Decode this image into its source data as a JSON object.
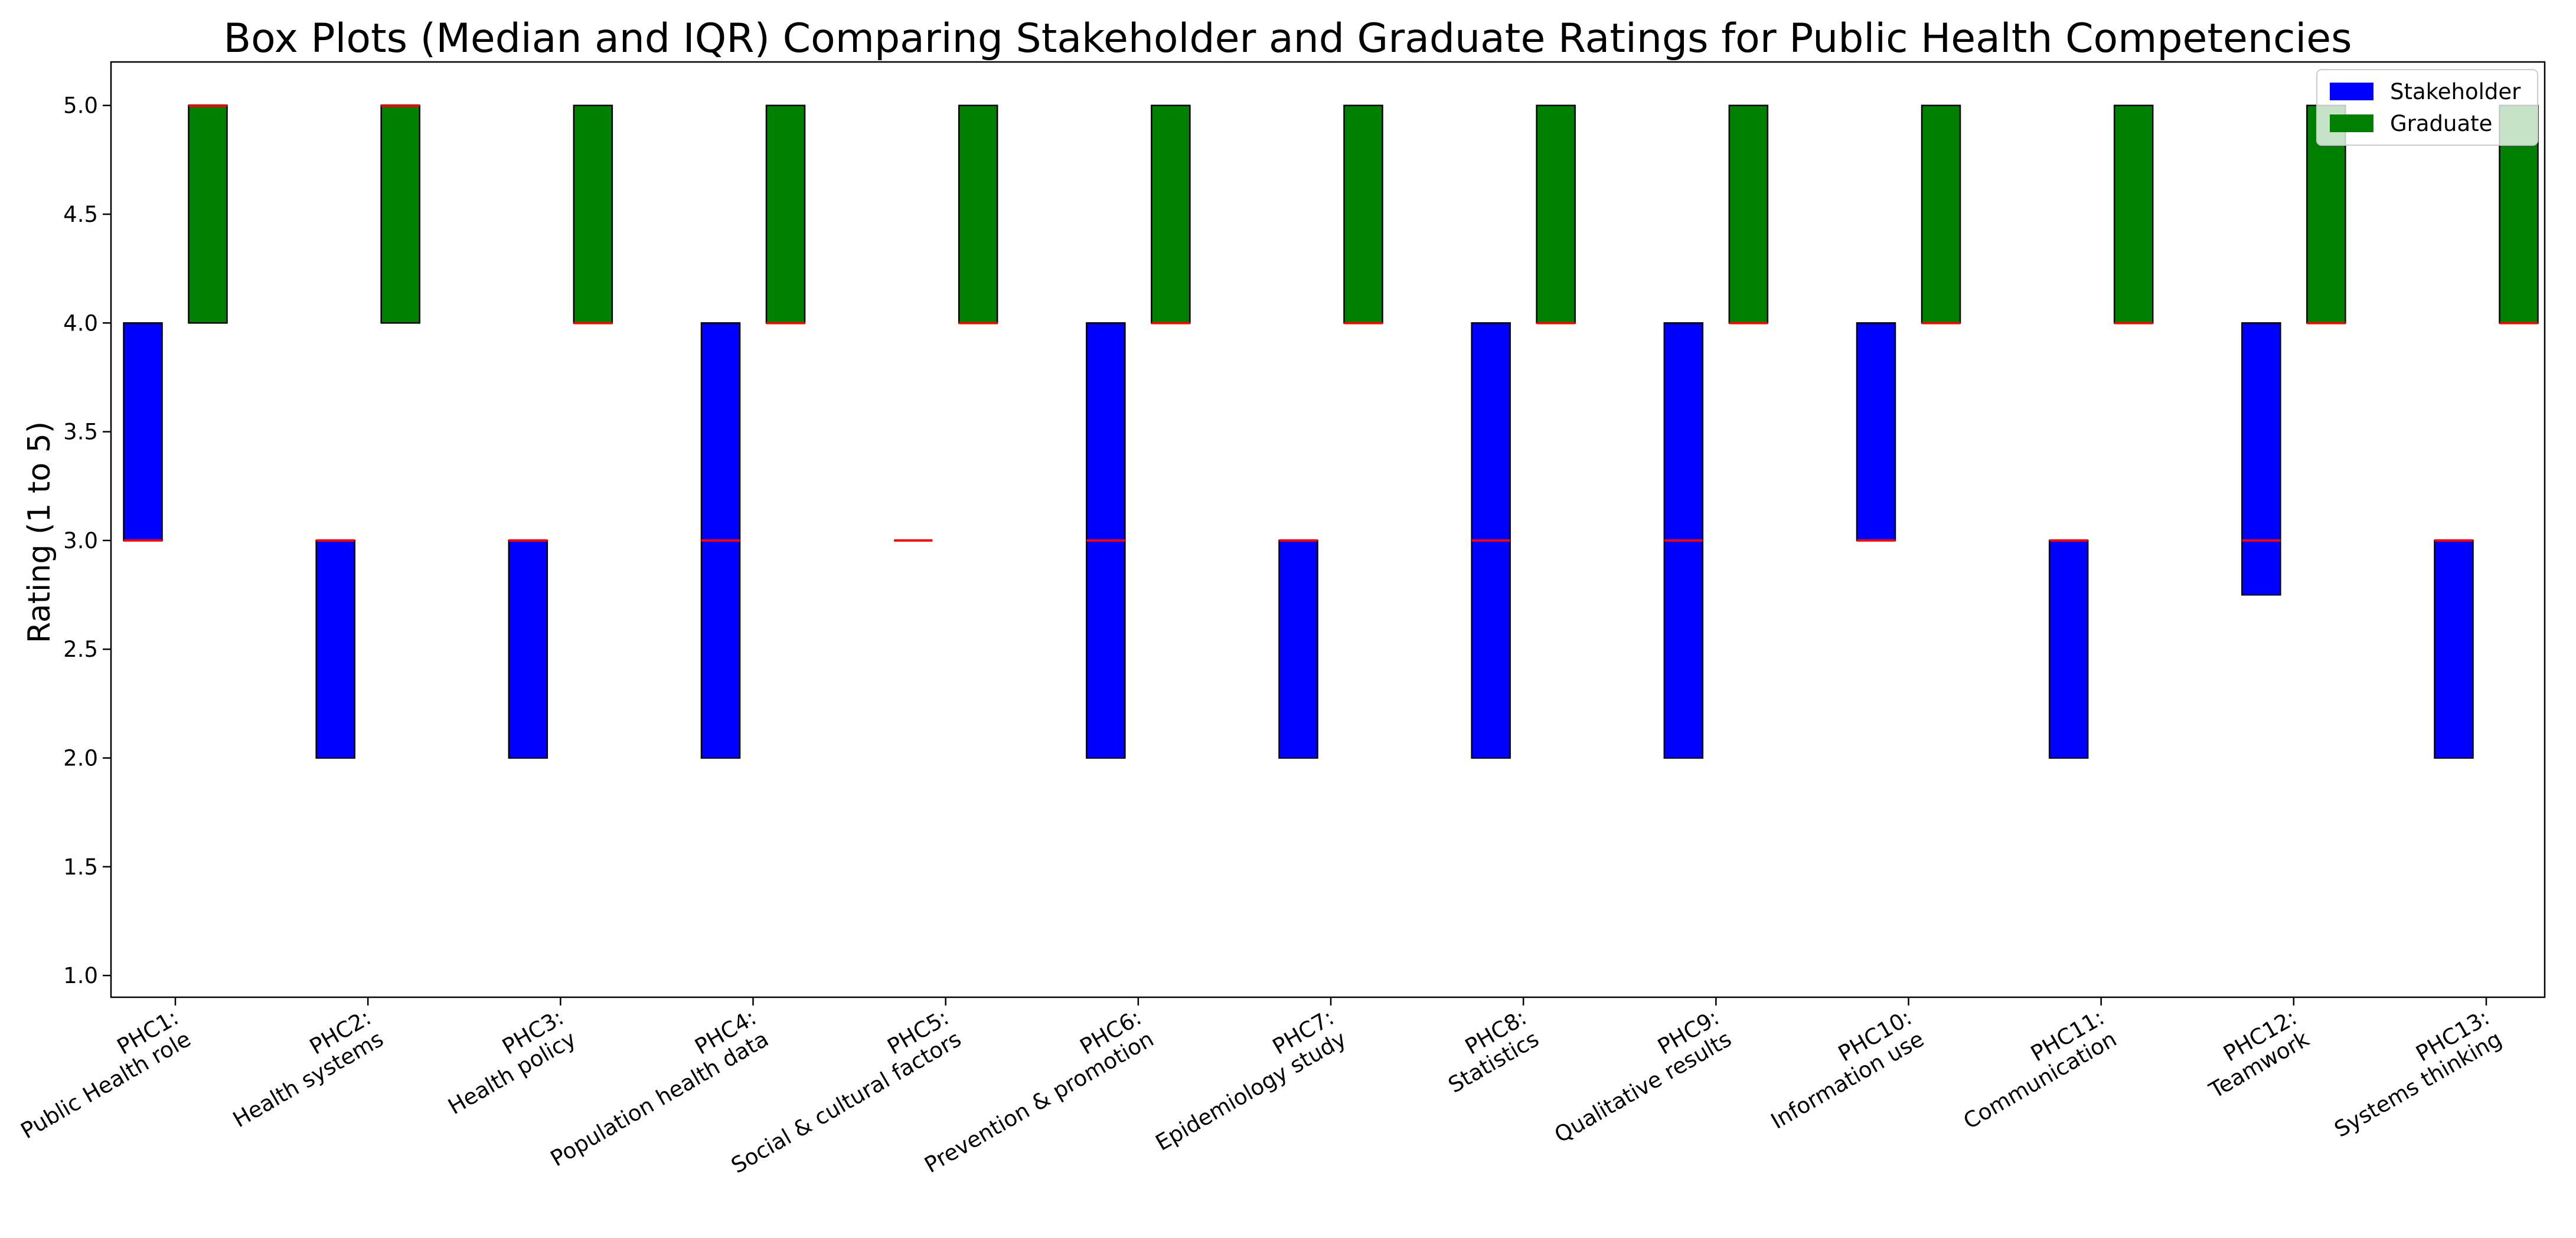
{
  "chart_data": {
    "type": "box",
    "title": "Box Plots (Median and IQR) Comparing Stakeholder and Graduate Ratings for Public Health Competencies",
    "ylabel": "Rating (1 to 5)",
    "xlabel": "",
    "ylim": [
      0.9,
      5.2
    ],
    "yticks": [
      "1.0",
      "1.5",
      "2.0",
      "2.5",
      "3.0",
      "3.5",
      "4.0",
      "4.5",
      "5.0"
    ],
    "grid": false,
    "legend": "top-right",
    "categories": [
      [
        "PHC1:",
        "Public Health role"
      ],
      [
        "PHC2:",
        "Health systems"
      ],
      [
        "PHC3:",
        "Health policy"
      ],
      [
        "PHC4:",
        "Population health data"
      ],
      [
        "PHC5:",
        "Social & cultural factors"
      ],
      [
        "PHC6:",
        "Prevention & promotion"
      ],
      [
        "PHC7:",
        "Epidemiology study"
      ],
      [
        "PHC8:",
        "Statistics"
      ],
      [
        "PHC9:",
        "Qualitative results"
      ],
      [
        "PHC10:",
        "Information use"
      ],
      [
        "PHC11:",
        "Communication"
      ],
      [
        "PHC12:",
        "Teamwork"
      ],
      [
        "PHC13:",
        "Systems thinking"
      ]
    ],
    "series": [
      {
        "name": "Stakeholder",
        "color": "#0000ff",
        "q1": [
          3,
          2,
          2,
          2,
          3,
          2,
          2,
          2,
          2,
          3,
          2,
          2.75,
          2
        ],
        "q3": [
          4,
          3,
          3,
          4,
          3,
          4,
          3,
          4,
          4,
          4,
          3,
          4,
          3
        ],
        "median": [
          3,
          3,
          3,
          3,
          3,
          3,
          3,
          3,
          3,
          3,
          3,
          3,
          3
        ]
      },
      {
        "name": "Graduate",
        "color": "#008000",
        "q1": [
          4,
          4,
          4,
          4,
          4,
          4,
          4,
          4,
          4,
          4,
          4,
          4,
          4
        ],
        "q3": [
          5,
          5,
          5,
          5,
          5,
          5,
          5,
          5,
          5,
          5,
          5,
          5,
          5
        ],
        "median": [
          5,
          5,
          4,
          4,
          4,
          4,
          4,
          4,
          4,
          4,
          4,
          4,
          4
        ]
      }
    ],
    "median_color": "#ff0000"
  }
}
